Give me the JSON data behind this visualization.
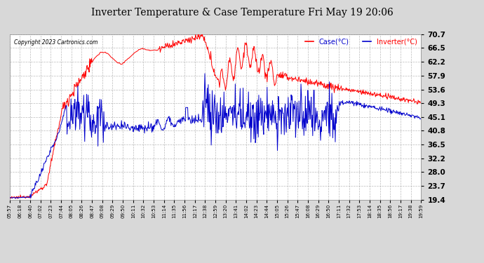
{
  "title": "Inverter Temperature & Case Temperature Fri May 19 20:06",
  "copyright": "Copyright 2023 Cartronics.com",
  "legend_case": "Case(°C)",
  "legend_inverter": "Inverter(°C)",
  "yticks": [
    19.4,
    23.7,
    28.0,
    32.2,
    36.5,
    40.8,
    45.1,
    49.3,
    53.6,
    57.9,
    62.2,
    66.5,
    70.7
  ],
  "ylim": [
    19.4,
    70.7
  ],
  "bg_color": "#ffffff",
  "fig_color": "#d8d8d8",
  "grid_color": "#aaaaaa",
  "title_color": "#000000",
  "case_color": "#ff0000",
  "inverter_color": "#0000cc",
  "legend_case_color": "#0000cc",
  "legend_inverter_color": "#ff0000",
  "xtick_labels": [
    "05:57",
    "06:18",
    "06:40",
    "07:02",
    "07:23",
    "07:44",
    "08:05",
    "08:26",
    "08:47",
    "09:08",
    "09:29",
    "09:50",
    "10:11",
    "10:32",
    "10:53",
    "11:14",
    "11:35",
    "11:56",
    "12:17",
    "12:38",
    "12:59",
    "13:20",
    "13:41",
    "14:02",
    "14:23",
    "14:44",
    "15:05",
    "15:26",
    "15:47",
    "16:08",
    "16:29",
    "16:50",
    "17:11",
    "17:32",
    "17:53",
    "18:14",
    "18:35",
    "18:56",
    "19:17",
    "19:38",
    "19:59"
  ]
}
